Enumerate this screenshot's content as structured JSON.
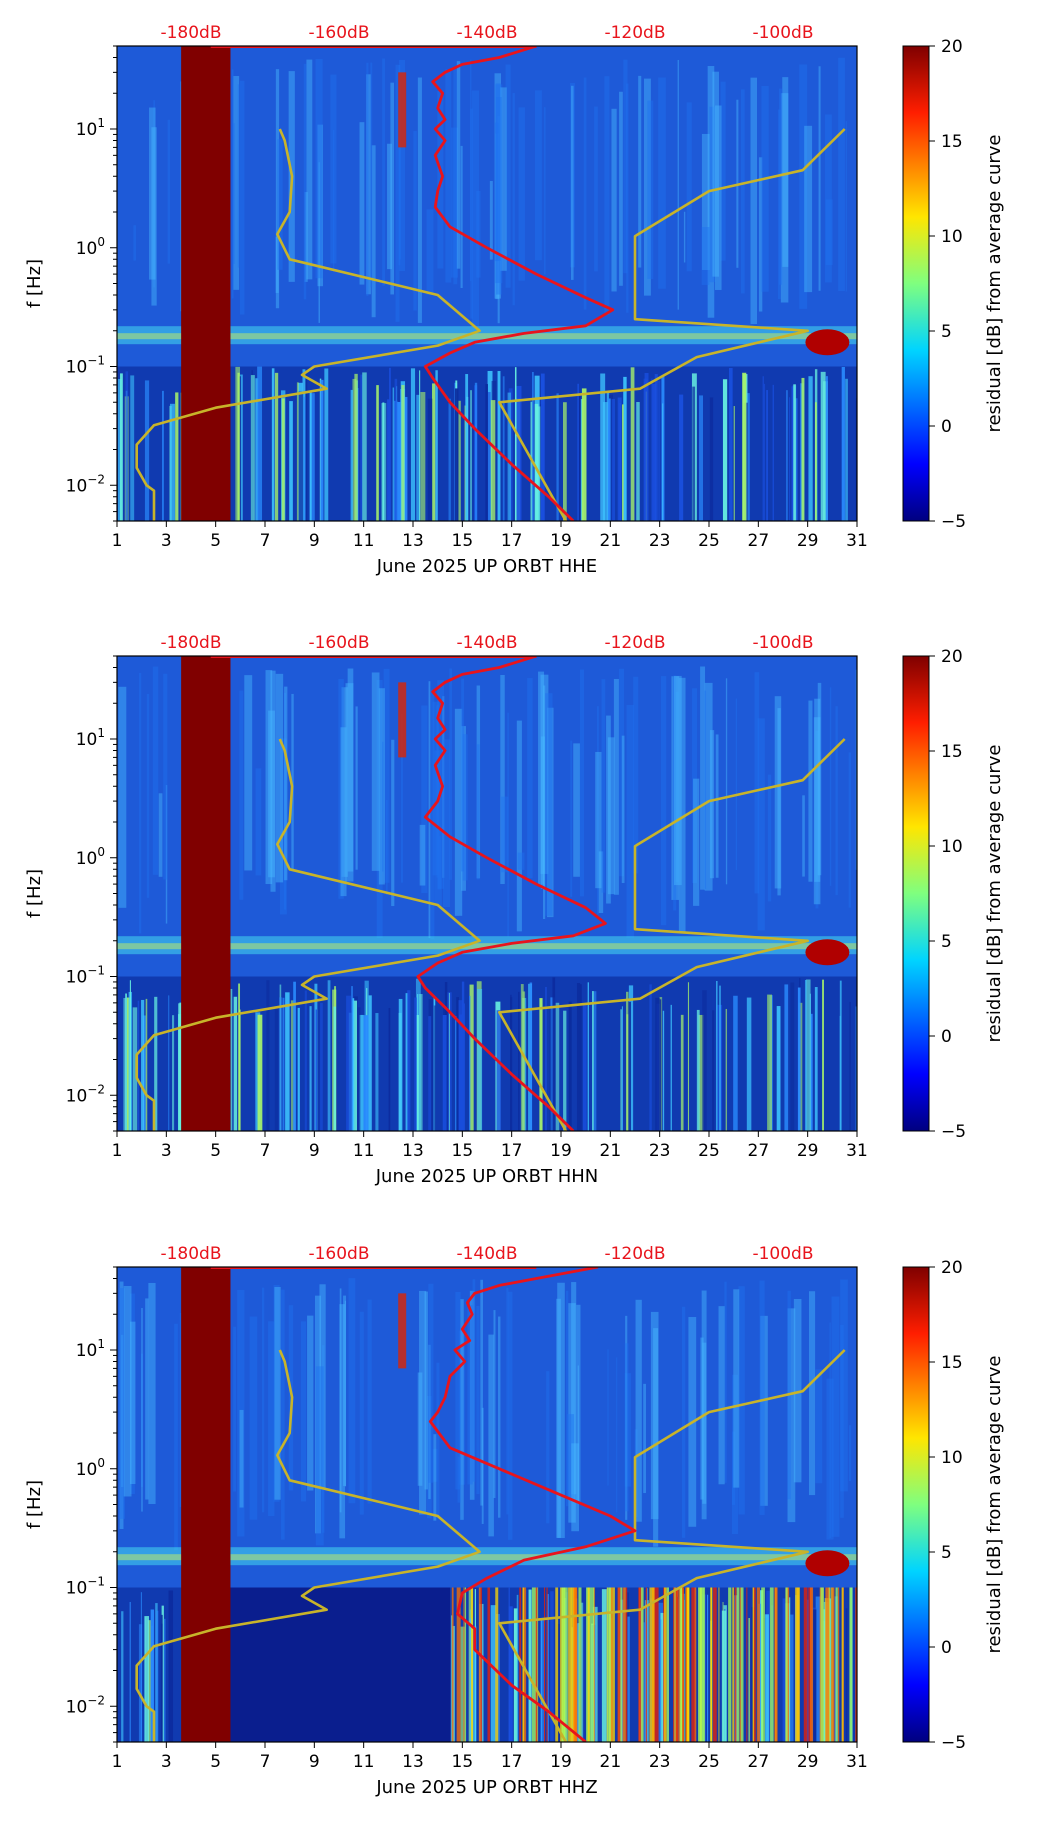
{
  "chart_data": {
    "type": "heatmap",
    "shared": {
      "xlabel_prefix": "June 2025 UP ORBT",
      "ylabel": "f [Hz]",
      "colorbar_label": "residual [dB] from average curve",
      "colorbar_ticks": [
        "20",
        "15",
        "10",
        "5",
        "0",
        "−5"
      ],
      "clim": [
        -5,
        20
      ],
      "x_ticks": [
        "1",
        "3",
        "5",
        "7",
        "9",
        "11",
        "13",
        "15",
        "17",
        "19",
        "21",
        "23",
        "25",
        "27",
        "29",
        "31"
      ],
      "x_range": [
        1,
        31
      ],
      "y_ticks": [
        {
          "base": "10",
          "exp": "1",
          "value": 10
        },
        {
          "base": "10",
          "exp": "0",
          "value": 1
        },
        {
          "base": "10",
          "exp": "−1",
          "value": 0.1
        },
        {
          "base": "10",
          "exp": "−2",
          "value": 0.01
        }
      ],
      "y_range_hz": [
        0.005,
        50
      ],
      "db_scale_labels": [
        "-180dB",
        "-160dB",
        "-140dB",
        "-120dB",
        "-100dB"
      ],
      "db_scale_positions_day": [
        4.0,
        10.0,
        16.0,
        22.0,
        28.0
      ],
      "gap_days": [
        3.6,
        5.6
      ],
      "colors": {
        "gap": "#800000",
        "red_curve": "#e8141c",
        "yellow_curve": "#c8b42a",
        "db_label": "#e8141c"
      }
    },
    "panels": [
      {
        "channel": "HHE",
        "xlabel": "June 2025 UP ORBT  HHE",
        "red_curve": [
          [
            18,
            50
          ],
          [
            16.5,
            40
          ],
          [
            15,
            35
          ],
          [
            14.3,
            30
          ],
          [
            13.8,
            25
          ],
          [
            14.2,
            20
          ],
          [
            14,
            15
          ],
          [
            14.3,
            12
          ],
          [
            13.9,
            10
          ],
          [
            14.3,
            8
          ],
          [
            13.9,
            6
          ],
          [
            14.2,
            4
          ],
          [
            14,
            3
          ],
          [
            13.9,
            2.2
          ],
          [
            14.5,
            1.5
          ],
          [
            16,
            1
          ],
          [
            18,
            0.6
          ],
          [
            20,
            0.38
          ],
          [
            21.1,
            0.3
          ],
          [
            20,
            0.22
          ],
          [
            17.5,
            0.19
          ],
          [
            15.5,
            0.16
          ],
          [
            14.5,
            0.13
          ],
          [
            13.5,
            0.1
          ],
          [
            13.8,
            0.08
          ],
          [
            14.5,
            0.05
          ],
          [
            15.5,
            0.03
          ],
          [
            17,
            0.015
          ],
          [
            18.5,
            0.008
          ],
          [
            19.5,
            0.005
          ]
        ],
        "yellow_lo_curve": [
          [
            2.5,
            0.005
          ],
          [
            2.5,
            0.009
          ],
          [
            2.2,
            0.01
          ],
          [
            1.8,
            0.014
          ],
          [
            1.8,
            0.022
          ],
          [
            2.5,
            0.032
          ],
          [
            5,
            0.045
          ],
          [
            9.5,
            0.065
          ],
          [
            8.5,
            0.085
          ],
          [
            9,
            0.1
          ],
          [
            14,
            0.15
          ],
          [
            15.7,
            0.2
          ],
          [
            14,
            0.4
          ],
          [
            8,
            0.8
          ],
          [
            7.5,
            1.3
          ],
          [
            8,
            2
          ],
          [
            8.1,
            4
          ],
          [
            7.8,
            8
          ],
          [
            7.6,
            10
          ]
        ],
        "yellow_hi_curve": [
          [
            19.2,
            0.005
          ],
          [
            16.5,
            0.05
          ],
          [
            22.2,
            0.065
          ],
          [
            24.5,
            0.12
          ],
          [
            29,
            0.2
          ],
          [
            22,
            0.25
          ],
          [
            22,
            1.25
          ],
          [
            25,
            3
          ],
          [
            28.8,
            4.5
          ],
          [
            30.5,
            10
          ]
        ]
      },
      {
        "channel": "HHN",
        "xlabel": "June 2025 UP ORBT  HHN",
        "red_curve": [
          [
            18,
            50
          ],
          [
            16.5,
            40
          ],
          [
            15,
            35
          ],
          [
            14.3,
            30
          ],
          [
            13.8,
            25
          ],
          [
            14.2,
            20
          ],
          [
            14,
            15
          ],
          [
            14.3,
            12
          ],
          [
            13.9,
            10
          ],
          [
            14.3,
            8
          ],
          [
            13.9,
            6
          ],
          [
            14.2,
            4
          ],
          [
            14,
            3
          ],
          [
            13.5,
            2.2
          ],
          [
            14.5,
            1.5
          ],
          [
            16,
            1
          ],
          [
            18,
            0.6
          ],
          [
            20,
            0.38
          ],
          [
            20.8,
            0.28
          ],
          [
            19.5,
            0.22
          ],
          [
            17,
            0.19
          ],
          [
            15,
            0.16
          ],
          [
            14,
            0.13
          ],
          [
            13.2,
            0.1
          ],
          [
            13.5,
            0.08
          ],
          [
            14.5,
            0.05
          ],
          [
            15.5,
            0.03
          ],
          [
            17,
            0.015
          ],
          [
            18.5,
            0.008
          ],
          [
            19.5,
            0.005
          ]
        ],
        "yellow_lo_curve": [
          [
            2.5,
            0.005
          ],
          [
            2.5,
            0.009
          ],
          [
            2.2,
            0.01
          ],
          [
            1.8,
            0.014
          ],
          [
            1.8,
            0.022
          ],
          [
            2.5,
            0.032
          ],
          [
            5,
            0.045
          ],
          [
            9.5,
            0.065
          ],
          [
            8.5,
            0.085
          ],
          [
            9,
            0.1
          ],
          [
            14,
            0.15
          ],
          [
            15.7,
            0.2
          ],
          [
            14,
            0.4
          ],
          [
            8,
            0.8
          ],
          [
            7.5,
            1.3
          ],
          [
            8,
            2
          ],
          [
            8.1,
            4
          ],
          [
            7.8,
            8
          ],
          [
            7.6,
            10
          ]
        ],
        "yellow_hi_curve": [
          [
            19.2,
            0.005
          ],
          [
            16.5,
            0.05
          ],
          [
            22.2,
            0.065
          ],
          [
            24.5,
            0.12
          ],
          [
            29,
            0.2
          ],
          [
            22,
            0.25
          ],
          [
            22,
            1.25
          ],
          [
            25,
            3
          ],
          [
            28.8,
            4.5
          ],
          [
            30.5,
            10
          ]
        ]
      },
      {
        "channel": "HHZ",
        "xlabel": "June 2025 UP ORBT  HHZ",
        "red_curve": [
          [
            20.5,
            50
          ],
          [
            18,
            40
          ],
          [
            16.5,
            35
          ],
          [
            15.5,
            30
          ],
          [
            15.2,
            25
          ],
          [
            15.4,
            20
          ],
          [
            15,
            15
          ],
          [
            15.3,
            12
          ],
          [
            14.7,
            10
          ],
          [
            15.1,
            8
          ],
          [
            14.5,
            6
          ],
          [
            14.3,
            4
          ],
          [
            14,
            3
          ],
          [
            13.7,
            2.5
          ],
          [
            14.5,
            1.5
          ],
          [
            16.5,
            1
          ],
          [
            19,
            0.6
          ],
          [
            21,
            0.4
          ],
          [
            22,
            0.3
          ],
          [
            20,
            0.22
          ],
          [
            17.5,
            0.17
          ],
          [
            16,
            0.12
          ],
          [
            15,
            0.09
          ],
          [
            14.8,
            0.06
          ],
          [
            15.5,
            0.045
          ],
          [
            15.5,
            0.03
          ],
          [
            17,
            0.015
          ],
          [
            18.5,
            0.009
          ],
          [
            20,
            0.005
          ]
        ],
        "yellow_lo_curve": [
          [
            2.5,
            0.005
          ],
          [
            2.5,
            0.009
          ],
          [
            2.2,
            0.01
          ],
          [
            1.8,
            0.014
          ],
          [
            1.8,
            0.022
          ],
          [
            2.5,
            0.032
          ],
          [
            5,
            0.045
          ],
          [
            9.5,
            0.065
          ],
          [
            8.5,
            0.085
          ],
          [
            9,
            0.1
          ],
          [
            14,
            0.15
          ],
          [
            15.7,
            0.2
          ],
          [
            14,
            0.4
          ],
          [
            8,
            0.8
          ],
          [
            7.5,
            1.3
          ],
          [
            8,
            2
          ],
          [
            8.1,
            4
          ],
          [
            7.8,
            8
          ],
          [
            7.6,
            10
          ]
        ],
        "yellow_hi_curve": [
          [
            19.2,
            0.005
          ],
          [
            16.5,
            0.05
          ],
          [
            22.2,
            0.065
          ],
          [
            24.5,
            0.12
          ],
          [
            29,
            0.2
          ],
          [
            22,
            0.25
          ],
          [
            22,
            1.25
          ],
          [
            25,
            3
          ],
          [
            28.8,
            4.5
          ],
          [
            30.5,
            10
          ]
        ]
      }
    ]
  }
}
